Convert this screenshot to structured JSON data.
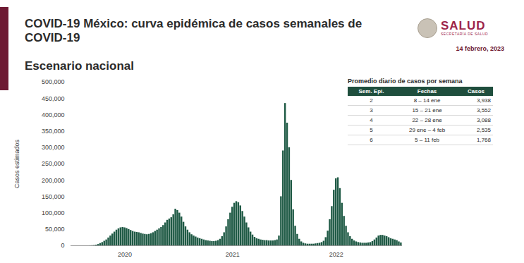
{
  "header": {
    "title": "COVID-19 México: curva epidémica de casos semanales de COVID-19",
    "subtitle": "Escenario nacional",
    "logo": "SALUD",
    "logo_subtitle": "SECRETARÍA DE SALUD",
    "date": "14 febrero, 2023"
  },
  "table": {
    "title": "Promedio diario de casos por semana",
    "columns": [
      "Sem. Epi.",
      "Fechas",
      "Casos"
    ],
    "rows": [
      [
        "2",
        "8 – 14 ene",
        "3,938"
      ],
      [
        "3",
        "15 – 21 ene",
        "3,552"
      ],
      [
        "4",
        "22 – 28 ene",
        "3,088"
      ],
      [
        "5",
        "29 ene – 4 feb",
        "2,535"
      ],
      [
        "6",
        "5 – 11 feb",
        "1,768"
      ]
    ]
  },
  "chart_data": {
    "type": "bar",
    "color": "#1f5a45",
    "y_label": "Casos estimados",
    "grid": false,
    "categories": [
      null,
      null,
      null,
      null,
      null,
      null,
      null,
      null,
      null,
      null,
      null,
      null,
      null,
      null,
      null,
      null,
      null,
      null,
      null,
      null,
      null,
      null,
      null,
      null,
      null,
      null,
      "2020",
      null,
      null,
      null,
      null,
      null,
      null,
      null,
      null,
      null,
      null,
      null,
      null,
      null,
      null,
      null,
      null,
      null,
      null,
      null,
      null,
      null,
      null,
      null,
      null,
      null,
      null,
      null,
      null,
      null,
      null,
      null,
      null,
      null,
      null,
      null,
      null,
      null,
      null,
      null,
      null,
      null,
      null,
      null,
      null,
      null,
      null,
      null,
      null,
      null,
      null,
      null,
      null,
      "2021",
      null,
      null,
      null,
      null,
      null,
      null,
      null,
      null,
      null,
      null,
      null,
      null,
      null,
      null,
      null,
      null,
      null,
      null,
      null,
      null,
      null,
      null,
      null,
      null,
      null,
      null,
      null,
      null,
      null,
      null,
      null,
      null,
      null,
      null,
      null,
      null,
      null,
      null,
      null,
      null,
      null,
      null,
      null,
      null,
      null,
      null,
      null,
      null,
      null,
      null,
      "2022",
      null,
      null,
      null,
      null,
      null,
      null,
      null,
      null,
      null,
      null,
      null,
      null,
      null,
      null,
      null,
      null,
      null,
      null,
      null,
      null,
      null,
      null,
      null,
      null,
      null,
      null,
      null,
      null,
      null,
      null,
      null,
      null
    ],
    "values": [
      0,
      0,
      0,
      0,
      0,
      0,
      0,
      0,
      0,
      200,
      500,
      1000,
      2000,
      4000,
      7000,
      10000,
      14000,
      18000,
      24000,
      30000,
      36000,
      42000,
      48000,
      52000,
      55000,
      56000,
      55000,
      53000,
      50000,
      47000,
      44000,
      42000,
      41000,
      40000,
      38000,
      36000,
      35000,
      34000,
      35000,
      37000,
      40000,
      44000,
      48000,
      52000,
      56000,
      62000,
      70000,
      78000,
      82000,
      86000,
      95000,
      112000,
      108000,
      100000,
      88000,
      72000,
      58000,
      48000,
      40000,
      34000,
      30000,
      27000,
      24000,
      22000,
      20000,
      18000,
      16000,
      15000,
      14000,
      13000,
      13000,
      14000,
      16000,
      20000,
      28000,
      40000,
      58000,
      80000,
      100000,
      118000,
      130000,
      135000,
      132000,
      122000,
      105000,
      88000,
      70000,
      55000,
      42000,
      33000,
      26000,
      22000,
      20000,
      18000,
      17000,
      16000,
      16000,
      15000,
      15000,
      15000,
      16000,
      18000,
      30000,
      150000,
      290000,
      435000,
      375000,
      300000,
      200000,
      110000,
      60000,
      35000,
      20000,
      12000,
      8000,
      6000,
      5000,
      5000,
      5000,
      5000,
      6000,
      7000,
      8000,
      10000,
      14000,
      25000,
      45000,
      80000,
      120000,
      170000,
      205000,
      208000,
      175000,
      130000,
      90000,
      60000,
      40000,
      28000,
      20000,
      15000,
      12000,
      10000,
      9000,
      8000,
      8000,
      8000,
      9000,
      10000,
      13000,
      18000,
      24000,
      30000,
      32000,
      32000,
      30000,
      28000,
      25000,
      22000,
      20000,
      18000,
      16000,
      12000,
      9000
    ],
    "ylim": [
      0,
      500000
    ],
    "yticks": [
      0,
      {
        "value": 50000,
        "label": "50,000"
      },
      {
        "value": 100000,
        "label": "100,000"
      },
      {
        "value": 150000,
        "label": "150,000"
      },
      {
        "value": 200000,
        "label": "200,000"
      },
      {
        "value": 250000,
        "label": "250,000"
      },
      {
        "value": 300000,
        "label": "300,000"
      },
      {
        "value": 350000,
        "label": "350,000"
      },
      {
        "value": 400000,
        "label": "400,000"
      },
      {
        "value": 450000,
        "label": "450,000"
      },
      {
        "value": 500000,
        "label": "500,000"
      }
    ]
  }
}
